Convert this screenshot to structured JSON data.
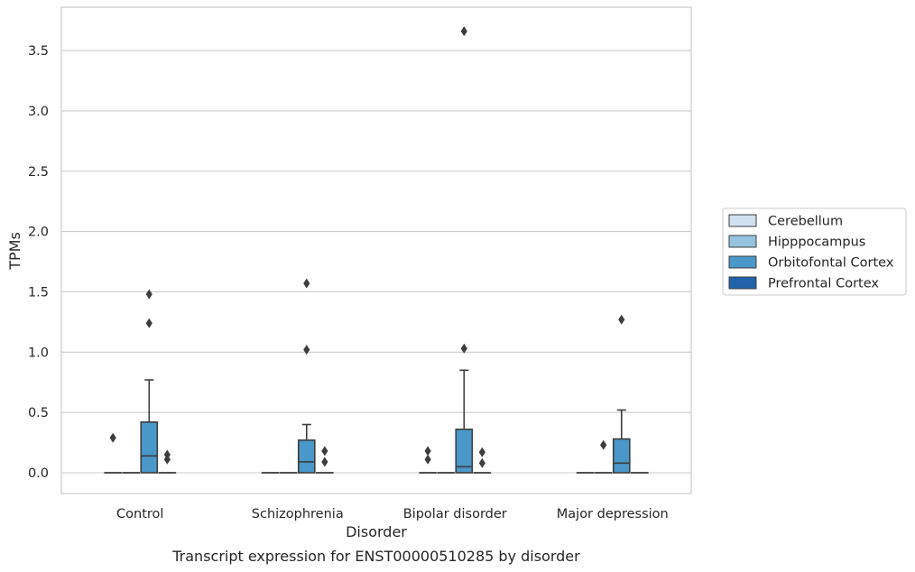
{
  "caption": "Transcript expression for ENST00000510285 by disorder",
  "chart_data": {
    "type": "box",
    "xlabel": "Disorder",
    "ylabel": "TPMs",
    "ylim": [
      -0.18,
      3.85
    ],
    "yticks": [
      "0.0",
      "0.5",
      "1.0",
      "1.5",
      "2.0",
      "2.5",
      "3.0",
      "3.5"
    ],
    "categories": [
      "Control",
      "Schizophrenia",
      "Bipolar disorder",
      "Major depression"
    ],
    "grid": "horizontal",
    "legend_position": "right",
    "hue_order": [
      "Cerebellum",
      "Hipppocampus",
      "Orbitofontal Cortex",
      "Prefrontal Cortex"
    ],
    "colors": {
      "Cerebellum": "#d0e1f2",
      "Hipppocampus": "#94c4df",
      "Orbitofontal Cortex": "#4a98c9",
      "Prefrontal Cortex": "#2163aa",
      "edge": "#3d3d3d",
      "grid": "#cccccc",
      "frame": "#cccccc"
    },
    "series": [
      {
        "name": "Cerebellum",
        "boxes": [
          {
            "q1": 0,
            "median": 0,
            "q3": 0,
            "whislo": 0,
            "whishi": 0,
            "fliers": [
              0.29
            ]
          },
          {
            "q1": 0,
            "median": 0,
            "q3": 0,
            "whislo": 0,
            "whishi": 0,
            "fliers": []
          },
          {
            "q1": 0,
            "median": 0,
            "q3": 0,
            "whislo": 0,
            "whishi": 0,
            "fliers": [
              0.18,
              0.11
            ]
          },
          {
            "q1": 0,
            "median": 0,
            "q3": 0,
            "whislo": 0,
            "whishi": 0,
            "fliers": []
          }
        ]
      },
      {
        "name": "Hipppocampus",
        "boxes": [
          {
            "q1": 0,
            "median": 0,
            "q3": 0,
            "whislo": 0,
            "whishi": 0,
            "fliers": []
          },
          {
            "q1": 0,
            "median": 0,
            "q3": 0,
            "whislo": 0,
            "whishi": 0,
            "fliers": []
          },
          {
            "q1": 0,
            "median": 0,
            "q3": 0,
            "whislo": 0,
            "whishi": 0,
            "fliers": []
          },
          {
            "q1": 0,
            "median": 0,
            "q3": 0,
            "whislo": 0,
            "whishi": 0,
            "fliers": [
              0.23
            ]
          }
        ]
      },
      {
        "name": "Orbitofontal Cortex",
        "boxes": [
          {
            "q1": 0,
            "median": 0.14,
            "q3": 0.42,
            "whislo": 0,
            "whishi": 0.77,
            "fliers": [
              1.24,
              1.48
            ]
          },
          {
            "q1": 0,
            "median": 0.09,
            "q3": 0.27,
            "whislo": 0,
            "whishi": 0.4,
            "fliers": [
              1.02,
              1.57
            ]
          },
          {
            "q1": 0,
            "median": 0.05,
            "q3": 0.36,
            "whislo": 0,
            "whishi": 0.85,
            "fliers": [
              1.03,
              3.66
            ]
          },
          {
            "q1": 0,
            "median": 0.08,
            "q3": 0.28,
            "whislo": 0,
            "whishi": 0.52,
            "fliers": [
              1.27
            ]
          }
        ]
      },
      {
        "name": "Prefrontal Cortex",
        "boxes": [
          {
            "q1": 0,
            "median": 0,
            "q3": 0,
            "whislo": 0,
            "whishi": 0,
            "fliers": [
              0.15,
              0.11
            ]
          },
          {
            "q1": 0,
            "median": 0,
            "q3": 0,
            "whislo": 0,
            "whishi": 0,
            "fliers": [
              0.18,
              0.09
            ]
          },
          {
            "q1": 0,
            "median": 0,
            "q3": 0,
            "whislo": 0,
            "whishi": 0,
            "fliers": [
              0.17,
              0.08
            ]
          },
          {
            "q1": 0,
            "median": 0,
            "q3": 0,
            "whislo": 0,
            "whishi": 0,
            "fliers": []
          }
        ]
      }
    ]
  }
}
